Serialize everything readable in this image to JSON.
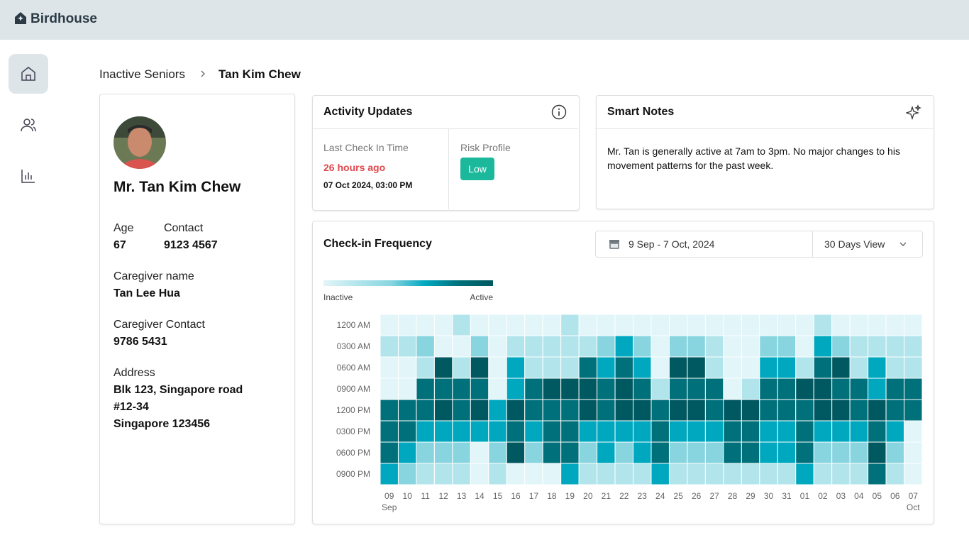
{
  "app": {
    "name": "Birdhouse"
  },
  "breadcrumb": {
    "parent": "Inactive Seniors",
    "current": "Tan Kim Chew"
  },
  "profile": {
    "name": "Mr. Tan Kim Chew",
    "age_label": "Age",
    "age": "67",
    "contact_label": "Contact",
    "contact": "9123 4567",
    "caregiver_label": "Caregiver name",
    "caregiver": "Tan Lee Hua",
    "caregiver_contact_label": "Caregiver Contact",
    "caregiver_contact": "9786 5431",
    "address_label": "Address",
    "address": [
      "Blk 123, Singapore road",
      "#12-34",
      "Singapore 123456"
    ]
  },
  "activity": {
    "title": "Activity Updates",
    "last_check_label": "Last Check In Time",
    "last_check_ago": "26 hours ago",
    "last_check_time": "07 Oct 2024, 03:00 PM",
    "risk_label": "Risk Profile",
    "risk_value": "Low"
  },
  "notes": {
    "title": "Smart Notes",
    "text": "Mr. Tan is generally active at 7am to 3pm. No major changes to his movement patterns for the past week."
  },
  "chart_data": {
    "type": "heatmap",
    "title": "Check-in Frequency",
    "date_range": "9 Sep - 7 Oct, 2024",
    "view": "30 Days View",
    "legend": {
      "low": "Inactive",
      "high": "Active"
    },
    "colors": [
      "#e2f5f8",
      "#b2e5eb",
      "#88d5e0",
      "#00a8bf",
      "#00707a",
      "#005860"
    ],
    "x": [
      "09",
      "10",
      "11",
      "12",
      "13",
      "14",
      "15",
      "16",
      "17",
      "18",
      "19",
      "20",
      "21",
      "22",
      "23",
      "24",
      "25",
      "26",
      "27",
      "28",
      "29",
      "30",
      "31",
      "01",
      "02",
      "03",
      "04",
      "05",
      "06",
      "07"
    ],
    "x_months": [
      "Sep",
      null,
      null,
      null,
      null,
      null,
      null,
      null,
      null,
      null,
      null,
      null,
      null,
      null,
      null,
      null,
      null,
      null,
      null,
      null,
      null,
      null,
      null,
      null,
      null,
      null,
      null,
      null,
      null,
      "Oct"
    ],
    "y": [
      "1200 AM",
      "0300 AM",
      "0600 AM",
      "0900 AM",
      "1200 PM",
      "0300 PM",
      "0600 PM",
      "0900 PM"
    ],
    "values": [
      [
        0,
        0,
        0,
        0,
        1,
        0,
        0,
        0,
        0,
        0,
        1,
        0,
        0,
        0,
        0,
        0,
        0,
        0,
        0,
        0,
        0,
        0,
        0,
        0,
        1,
        0,
        0,
        0,
        0,
        0
      ],
      [
        1,
        1,
        2,
        0,
        0,
        2,
        0,
        1,
        1,
        1,
        1,
        1,
        2,
        3,
        2,
        0,
        2,
        2,
        1,
        0,
        0,
        2,
        2,
        0,
        3,
        2,
        1,
        1,
        1,
        1
      ],
      [
        0,
        0,
        1,
        5,
        1,
        5,
        0,
        3,
        1,
        1,
        1,
        4,
        3,
        4,
        3,
        0,
        5,
        5,
        1,
        0,
        0,
        3,
        3,
        1,
        4,
        5,
        1,
        3,
        1,
        1
      ],
      [
        0,
        0,
        4,
        4,
        4,
        4,
        0,
        3,
        4,
        5,
        5,
        5,
        4,
        5,
        4,
        1,
        4,
        4,
        4,
        0,
        1,
        4,
        4,
        5,
        5,
        4,
        4,
        3,
        4,
        4
      ],
      [
        4,
        4,
        4,
        5,
        4,
        5,
        3,
        5,
        4,
        4,
        4,
        5,
        4,
        5,
        5,
        4,
        5,
        5,
        4,
        5,
        5,
        4,
        4,
        4,
        5,
        5,
        4,
        5,
        4,
        4
      ],
      [
        4,
        4,
        3,
        3,
        3,
        3,
        3,
        4,
        3,
        4,
        4,
        3,
        3,
        3,
        3,
        4,
        3,
        3,
        3,
        4,
        4,
        3,
        3,
        4,
        3,
        3,
        3,
        4,
        3,
        0
      ],
      [
        4,
        3,
        2,
        2,
        2,
        0,
        2,
        5,
        2,
        4,
        4,
        2,
        3,
        2,
        3,
        4,
        2,
        2,
        2,
        4,
        4,
        3,
        3,
        4,
        2,
        2,
        2,
        5,
        2,
        0
      ],
      [
        3,
        2,
        1,
        1,
        1,
        0,
        1,
        0,
        0,
        0,
        3,
        1,
        1,
        1,
        1,
        3,
        1,
        1,
        1,
        1,
        1,
        1,
        1,
        3,
        1,
        1,
        1,
        4,
        1,
        0
      ]
    ]
  }
}
